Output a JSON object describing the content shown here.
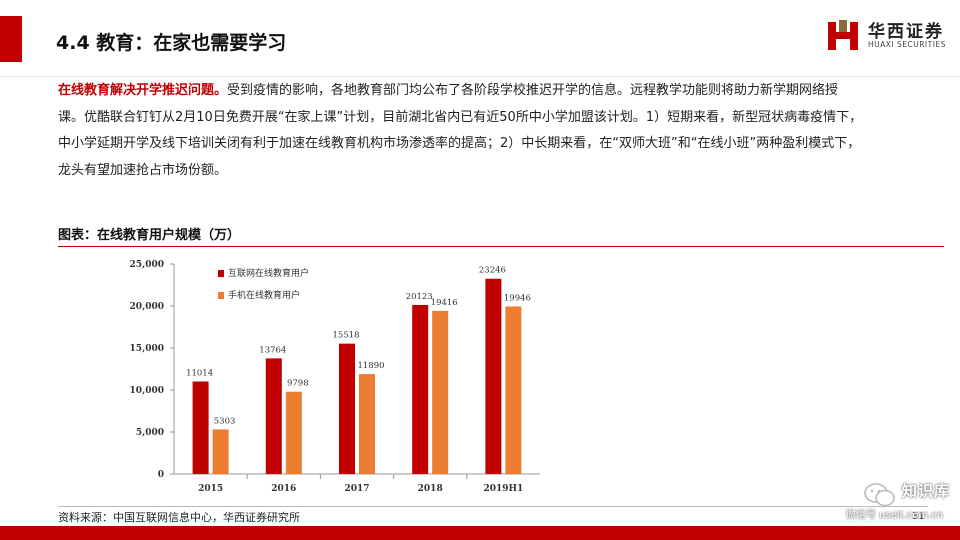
{
  "header": {
    "title": "4.4 教育：在家也需要学习",
    "logo_cn": "华西证券",
    "logo_en": "HUAXI SECURITIES"
  },
  "body": {
    "highlight": "在线教育解决开学推迟问题。",
    "text": "受到疫情的影响，各地教育部门均公布了各阶段学校推迟开学的信息。远程教学功能则将助力新学期网络授课。优酷联合钉钉从2月10日免费开展“在家上课”计划，目前湖北省内已有近50所中小学加盟该计划。1）短期来看，新型冠状病毒疫情下，中小学延期开学及线下培训关闭有利于加速在线教育机构市场渗透率的提高；2）中长期来看，在“双师大班”和“在线小班”两种盈利模式下，龙头有望加速抢占市场份额。"
  },
  "chart_title": "图表：在线教育用户规模（万）",
  "chart_data": {
    "type": "bar",
    "title": "",
    "xlabel": "",
    "ylabel": "",
    "categories": [
      "2015",
      "2016",
      "2017",
      "2018",
      "2019H1"
    ],
    "series": [
      {
        "name": "互联网在线教育用户",
        "color": "#c00000",
        "values": [
          11014,
          13764,
          15518,
          20123,
          23246
        ]
      },
      {
        "name": "手机在线教育用户",
        "color": "#ed7d31",
        "values": [
          5303,
          9798,
          11890,
          19416,
          19946
        ]
      }
    ],
    "ylim": [
      0,
      25000
    ],
    "yticks": [
      0,
      5000,
      10000,
      15000,
      20000,
      25000
    ],
    "ytick_labels": [
      "0",
      "5,000",
      "10,000",
      "15,000",
      "20,000",
      "25,000"
    ],
    "data_labels": true,
    "grid": false,
    "legend_position": "top-left"
  },
  "footer": {
    "source": "资料来源：中国互联网信息中心，华西证券研究所",
    "page": "31"
  },
  "watermark": {
    "name": "知识库",
    "id": "微信号 useit.com.cn"
  }
}
